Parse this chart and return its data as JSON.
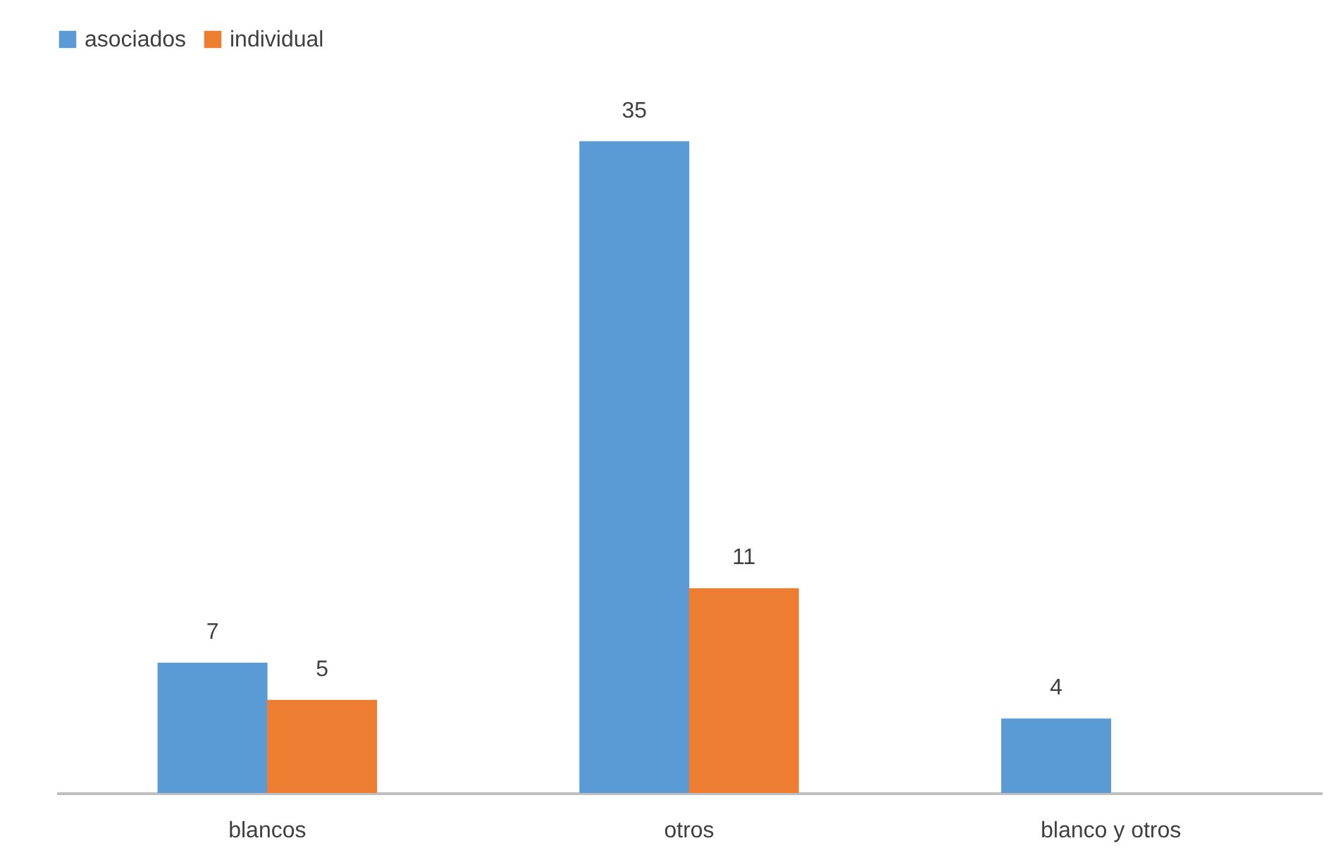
{
  "chart_data": {
    "type": "bar",
    "categories": [
      "blancos",
      "otros",
      "blanco y otros"
    ],
    "series": [
      {
        "name": "asociados",
        "color": "#5b9bd5",
        "values": [
          7,
          35,
          4
        ]
      },
      {
        "name": "individual",
        "color": "#ed7d31",
        "values": [
          5,
          11,
          null
        ]
      }
    ],
    "data_labels": true,
    "legend": "top",
    "grid": false
  }
}
